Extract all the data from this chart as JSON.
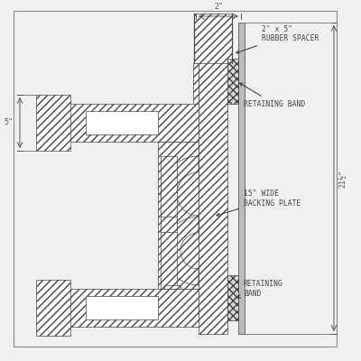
{
  "bg_color": "#f0f0f0",
  "line_color": "#444444",
  "hatch_lw": 0.5,
  "draw_lw": 0.9,
  "ann_fs": 5.8,
  "dim_fs": 6.0,
  "annotations": {
    "rubber_spacer": "2\" x 5\"\nRUBBER SPACER",
    "retaining_band_top": "RETAINING BAND",
    "backing_plate": "15\" WIDE\nBACKING PLATE",
    "retaining_band_bot": "RETAINING\nBAND"
  },
  "dims": {
    "two_inch": "2\"",
    "five_inch": "5\"",
    "twentyone_inch": "21½\""
  }
}
